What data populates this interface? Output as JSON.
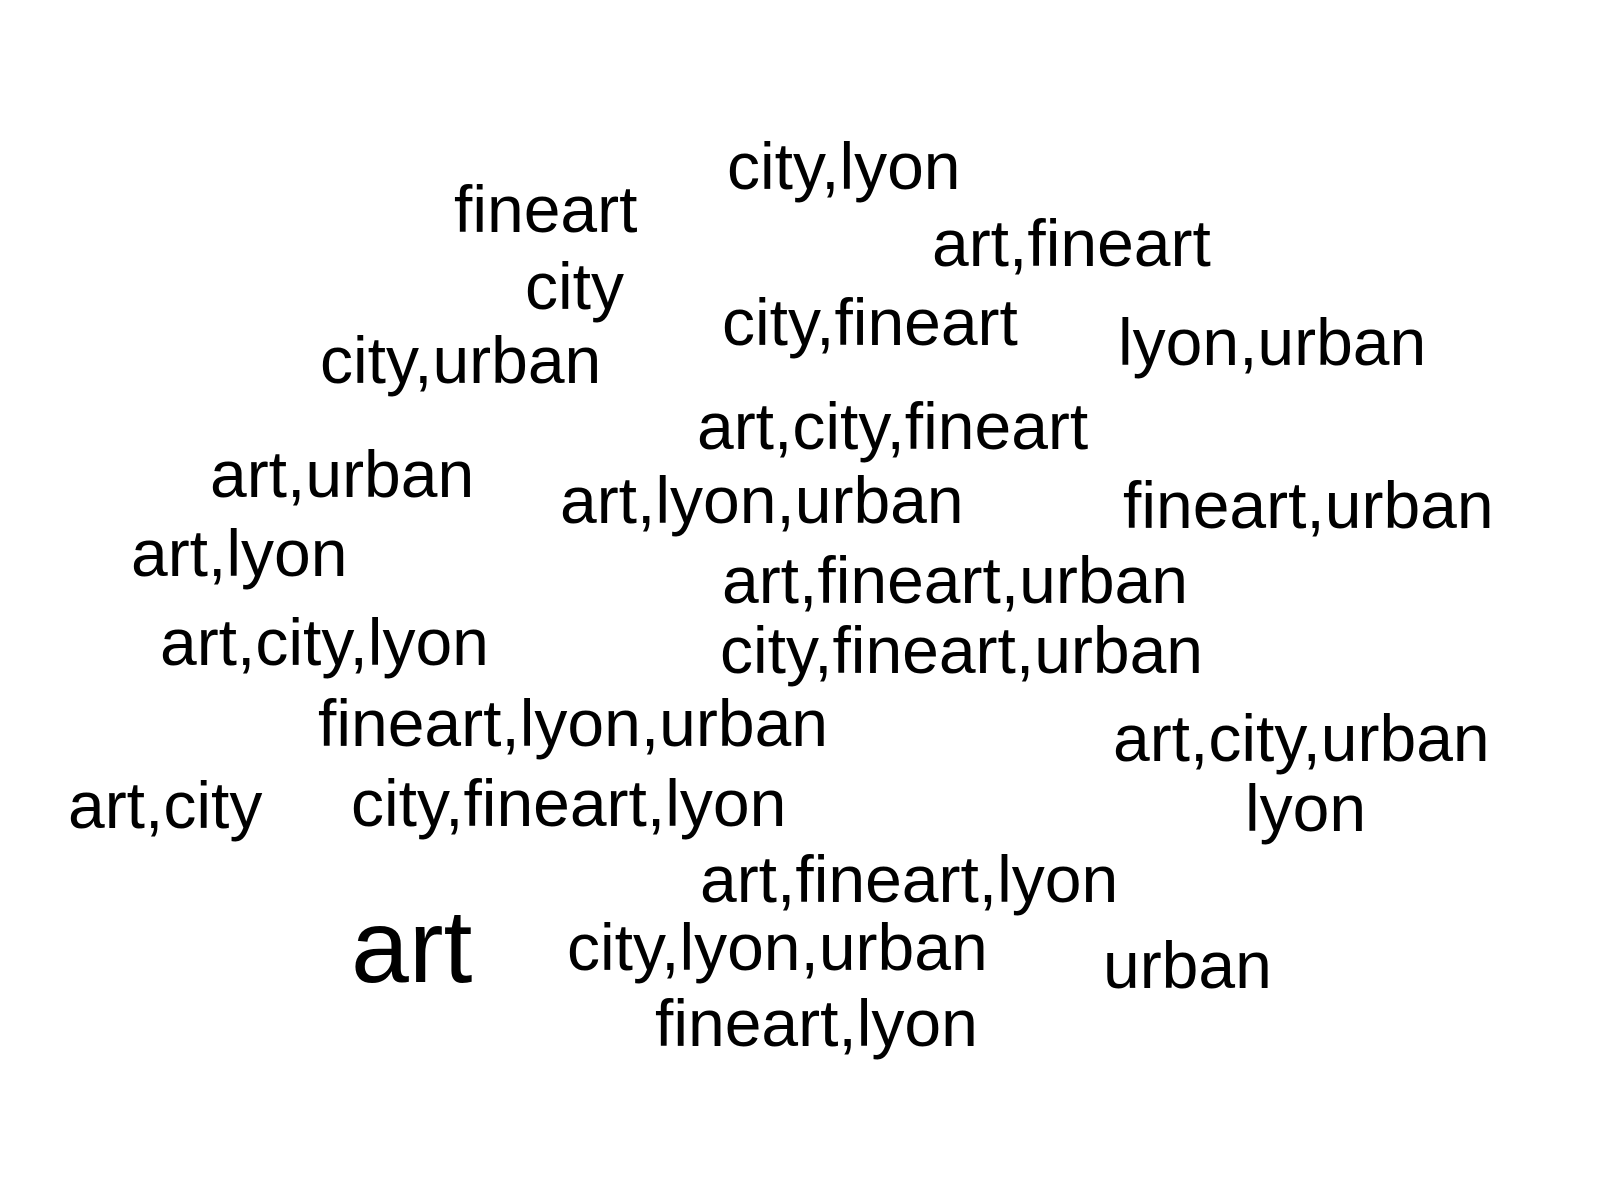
{
  "words": {
    "city_lyon": "city,lyon",
    "fineart": "fineart",
    "art_fineart": "art,fineart",
    "city": "city",
    "city_fineart": "city,fineart",
    "lyon_urban": "lyon,urban",
    "city_urban": "city,urban",
    "art_city_fineart": "art,city,fineart",
    "art_urban": "art,urban",
    "art_lyon_urban": "art,lyon,urban",
    "fineart_urban": "fineart,urban",
    "art_lyon": "art,lyon",
    "art_fineart_urban": "art,fineart,urban",
    "art_city_lyon": "art,city,lyon",
    "city_fineart_urban": "city,fineart,urban",
    "fineart_lyon_urban": "fineart,lyon,urban",
    "art_city_urban": "art,city,urban",
    "art_city": "art,city",
    "city_fineart_lyon": "city,fineart,lyon",
    "lyon": "lyon",
    "art_fineart_lyon": "art,fineart,lyon",
    "art": "art",
    "city_lyon_urban": "city,lyon,urban",
    "urban": "urban",
    "fineart_lyon": "fineart,lyon"
  },
  "colors": {
    "background": "#ffffff",
    "text": "#000000"
  }
}
